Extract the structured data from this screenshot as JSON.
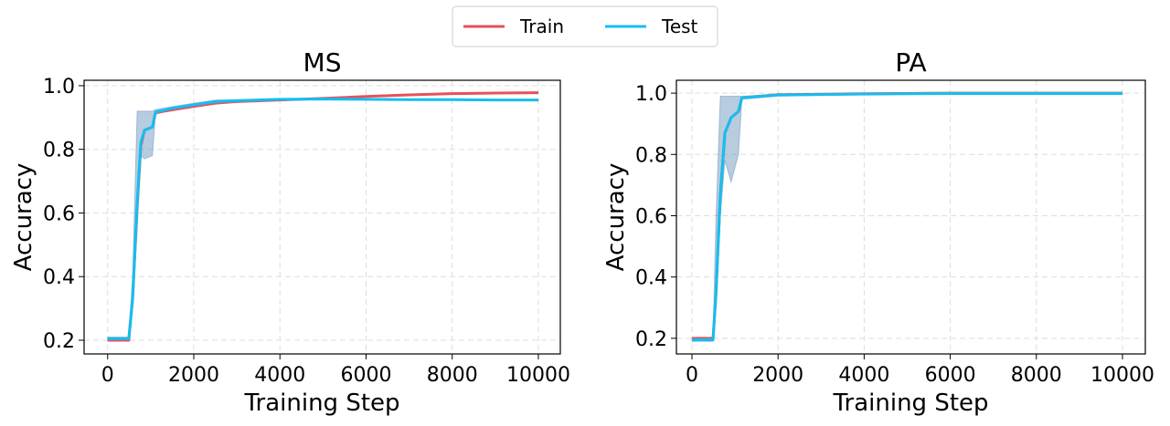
{
  "legend": {
    "position": "top-center",
    "entries": [
      {
        "name": "Train",
        "color": "#e8505b"
      },
      {
        "name": "Test",
        "color": "#12bff0"
      }
    ]
  },
  "band_color": "#4a7fb0",
  "chart_data": [
    {
      "type": "line",
      "title": "MS",
      "xlabel": "Training Step",
      "ylabel": "Accuracy",
      "xlim": [
        -547,
        10510
      ],
      "ylim": [
        0.157,
        1.017
      ],
      "xticks": [
        0,
        2000,
        4000,
        6000,
        8000,
        10000
      ],
      "yticks": [
        0.2,
        0.4,
        0.6,
        0.8,
        1.0
      ],
      "grid": true,
      "series": [
        {
          "name": "Train",
          "x": [
            0,
            490,
            580,
            685,
            770,
            855,
            1040,
            1110,
            1535,
            2000,
            2500,
            3000,
            4000,
            5000,
            6000,
            7000,
            8000,
            9000,
            10000
          ],
          "y": [
            0.2,
            0.2,
            0.33,
            0.62,
            0.81,
            0.86,
            0.87,
            0.915,
            0.925,
            0.935,
            0.945,
            0.95,
            0.955,
            0.96,
            0.966,
            0.971,
            0.975,
            0.977,
            0.978
          ]
        },
        {
          "name": "Test",
          "x": [
            0,
            490,
            580,
            685,
            770,
            855,
            1040,
            1110,
            1535,
            2000,
            2500,
            3000,
            4000,
            5000,
            6000,
            7000,
            8000,
            9000,
            10000
          ],
          "y": [
            0.205,
            0.205,
            0.333,
            0.63,
            0.82,
            0.86,
            0.87,
            0.917,
            0.93,
            0.94,
            0.95,
            0.953,
            0.957,
            0.958,
            0.957,
            0.956,
            0.956,
            0.955,
            0.955
          ],
          "band_lower": [
            0.2,
            0.2,
            0.3,
            0.55,
            0.78,
            0.77,
            0.78,
            0.91,
            0.925,
            0.935,
            0.945,
            0.95,
            0.955,
            0.956,
            0.955,
            0.954,
            0.954,
            0.953,
            0.953
          ],
          "band_upper": [
            0.21,
            0.21,
            0.4,
            0.92,
            0.92,
            0.92,
            0.92,
            0.925,
            0.935,
            0.945,
            0.955,
            0.956,
            0.959,
            0.96,
            0.959,
            0.958,
            0.958,
            0.957,
            0.957
          ]
        }
      ]
    },
    {
      "type": "line",
      "title": "PA",
      "xlabel": "Training Step",
      "ylabel": "Accuracy",
      "xlim": [
        -361,
        10531
      ],
      "ylim": [
        0.149,
        1.042
      ],
      "xticks": [
        0,
        2000,
        4000,
        6000,
        8000,
        10000
      ],
      "yticks": [
        0.2,
        0.4,
        0.6,
        0.8,
        1.0
      ],
      "grid": true,
      "series": [
        {
          "name": "Train",
          "x": [
            0,
            490,
            560,
            660,
            765,
            910,
            1080,
            1160,
            2000,
            4000,
            6000,
            8000,
            10000
          ],
          "y": [
            0.2,
            0.2,
            0.35,
            0.67,
            0.87,
            0.92,
            0.94,
            0.985,
            0.995,
            0.998,
            1.0,
            1.0,
            1.0
          ]
        },
        {
          "name": "Test",
          "x": [
            0,
            490,
            560,
            660,
            765,
            910,
            1080,
            1160,
            2000,
            4000,
            6000,
            8000,
            10000
          ],
          "y": [
            0.195,
            0.195,
            0.35,
            0.67,
            0.87,
            0.92,
            0.94,
            0.985,
            0.994,
            0.997,
            0.999,
            0.999,
            0.999
          ],
          "band_lower": [
            0.19,
            0.19,
            0.32,
            0.6,
            0.78,
            0.71,
            0.8,
            0.98,
            0.99,
            0.996,
            0.998,
            0.998,
            0.998
          ],
          "band_upper": [
            0.2,
            0.2,
            0.6,
            0.99,
            0.99,
            0.99,
            0.99,
            0.99,
            0.996,
            0.999,
            1.0,
            1.0,
            1.0
          ]
        }
      ]
    }
  ]
}
